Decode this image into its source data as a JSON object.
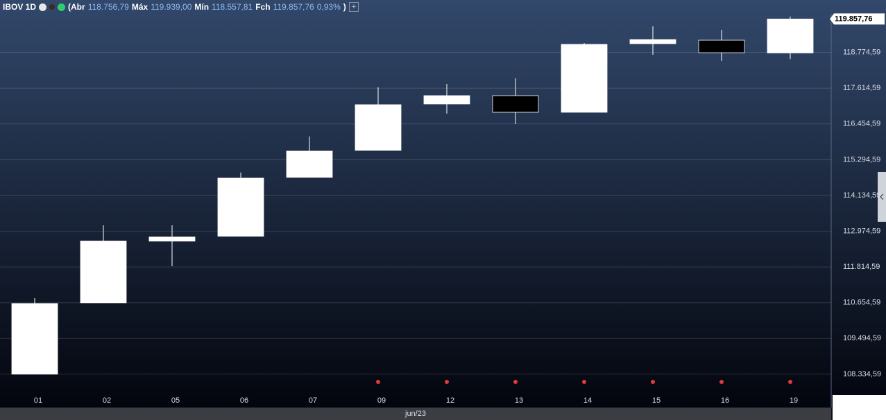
{
  "header": {
    "symbol": "IBOV 1D",
    "open_label": "(Abr",
    "open_value": "118.756,79",
    "high_label": "Máx",
    "high_value": "119.939,00",
    "low_label": "Mín",
    "low_value": "118.557,81",
    "close_label": "Fch",
    "close_value": "119.857,76",
    "change": "0,93%",
    "close_paren": ")"
  },
  "chart_data": {
    "type": "candlestick",
    "categories": [
      "01",
      "02",
      "05",
      "06",
      "07",
      "09",
      "12",
      "13",
      "14",
      "15",
      "16",
      "19"
    ],
    "x_group_label": "jun/23",
    "open": [
      108335,
      110650,
      112651,
      112808,
      114719,
      115596,
      117102,
      117372,
      116832,
      119057,
      119170,
      118756.79
    ],
    "high": [
      110807,
      113168,
      113168,
      114876,
      116045,
      117641,
      117754,
      117934,
      119080,
      119619,
      119507,
      119939.0
    ],
    "low": [
      108335,
      110650,
      111841,
      112808,
      114719,
      115596,
      116787,
      116450,
      116832,
      118698,
      118495,
      118557.81
    ],
    "close": [
      110628,
      112651,
      112786,
      114696,
      115573,
      117079,
      117372,
      116832,
      119035,
      119192,
      118765,
      119857.76
    ],
    "up_color": "#ffffff",
    "down_color": "#000000",
    "ylim": [
      107770,
      119980
    ],
    "yticks": [
      {
        "value": 108334.59,
        "label": "108.334,59"
      },
      {
        "value": 109494.59,
        "label": "109.494,59"
      },
      {
        "value": 110654.59,
        "label": "110.654,59"
      },
      {
        "value": 111814.59,
        "label": "111.814,59"
      },
      {
        "value": 112974.59,
        "label": "112.974,59"
      },
      {
        "value": 114134.59,
        "label": "114.134,59"
      },
      {
        "value": 115294.59,
        "label": "115.294,59"
      },
      {
        "value": 116454.59,
        "label": "116.454,59"
      },
      {
        "value": 117614.59,
        "label": "117.614,59"
      },
      {
        "value": 118774.59,
        "label": "118.774,59"
      }
    ],
    "grid": true
  }
}
